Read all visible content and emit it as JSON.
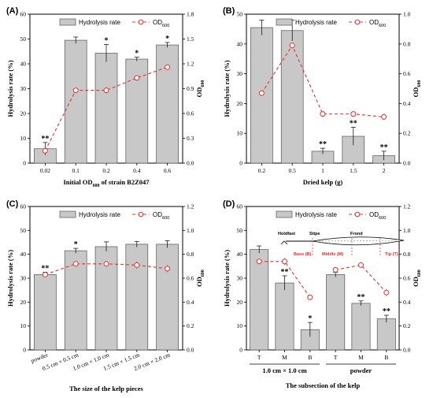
{
  "chart_data": [
    {
      "panel": "(A)",
      "type": "bar",
      "categories": [
        "0.02",
        "0.1",
        "0.2",
        "0.4",
        "0.6"
      ],
      "xlabel_main": "Initial OD",
      "xlabel_sub": "600",
      "xlabel_tail": " of strain B2Z047",
      "ylabel": "Hydrolysis rate (%)",
      "y2label_main": "OD",
      "y2label_sub": "600",
      "ylim": [
        0,
        60
      ],
      "yticks": [
        "0",
        "10",
        "20",
        "30",
        "40",
        "50",
        "60"
      ],
      "y2lim": [
        0,
        1.8
      ],
      "y2ticks": [
        "0.0",
        "0.3",
        "0.6",
        "0.9",
        "1.2",
        "1.5",
        "1.8"
      ],
      "series": [
        {
          "name": "Hydrolysis rate",
          "values": [
            5.8,
            49.5,
            44.3,
            41.9,
            47.6
          ],
          "errors": [
            2.5,
            1.3,
            3.5,
            0.8,
            1.0
          ]
        },
        {
          "name": "OD",
          "name_sub": "600",
          "values": [
            0.15,
            0.88,
            0.88,
            1.03,
            1.16
          ],
          "errors": [
            0.03,
            0.02,
            0.04,
            0.02,
            0.01
          ]
        }
      ],
      "stars": [
        "**",
        "",
        "*",
        "*",
        "*"
      ],
      "legend": "top"
    },
    {
      "panel": "(B)",
      "type": "bar",
      "categories": [
        "0.2",
        "0.5",
        "1",
        "1.5",
        "2"
      ],
      "xlabel_main": "Dried kelp (g)",
      "xlabel_sub": "",
      "xlabel_tail": "",
      "ylabel": "Hydrolysis rate (%)",
      "y2label_main": "OD",
      "y2label_sub": "600",
      "ylim": [
        0,
        50
      ],
      "yticks": [
        "0",
        "10",
        "20",
        "30",
        "40",
        "50"
      ],
      "y2lim": [
        0,
        1.0
      ],
      "y2ticks": [
        "0.0",
        "0.2",
        "0.4",
        "0.6",
        "0.8",
        "1.0"
      ],
      "series": [
        {
          "name": "Hydrolysis rate",
          "values": [
            45.5,
            44.5,
            4.0,
            9.0,
            2.5
          ],
          "errors": [
            2.5,
            3.5,
            1.0,
            3.0,
            1.5
          ]
        },
        {
          "name": "OD",
          "name_sub": "600",
          "values": [
            0.47,
            0.79,
            0.33,
            0.33,
            0.31
          ],
          "errors": [
            0.02,
            0.02,
            0.01,
            0.02,
            0.02
          ]
        }
      ],
      "stars": [
        "",
        "",
        "**",
        "**",
        "**"
      ],
      "legend": "top"
    },
    {
      "panel": "(C)",
      "type": "bar",
      "categories": [
        "powder",
        "0.5 cm × 0.5 cm",
        "1.0 cm × 1.0 cm",
        "1.5 cm × 1.5 cm",
        "2.0 cm × 2.0 cm"
      ],
      "xlabel_main": "The size of the kelp pieces",
      "xlabel_sub": "",
      "xlabel_tail": "",
      "ylabel": "Hydrolysis rate (%)",
      "y2label_main": "OD",
      "y2label_sub": "600",
      "ylim": [
        0,
        60
      ],
      "yticks": [
        "0",
        "10",
        "20",
        "30",
        "40",
        "50",
        "60"
      ],
      "y2lim": [
        0,
        1.2
      ],
      "y2ticks": [
        "0.0",
        "0.2",
        "0.4",
        "0.6",
        "0.8",
        "1.0",
        "1.2"
      ],
      "series": [
        {
          "name": "Hydrolysis rate",
          "values": [
            31.5,
            41.5,
            43.2,
            44.2,
            44.2
          ],
          "errors": [
            1.0,
            1.0,
            2.0,
            1.2,
            1.5
          ]
        },
        {
          "name": "OD",
          "name_sub": "600",
          "values": [
            0.63,
            0.72,
            0.72,
            0.71,
            0.68
          ],
          "errors": [
            0.02,
            0.02,
            0.02,
            0.03,
            0.03
          ]
        }
      ],
      "stars": [
        "**",
        "*",
        "",
        "",
        ""
      ],
      "legend": "top"
    },
    {
      "panel": "(D)",
      "type": "bar",
      "categories": [
        "T",
        "M",
        "B",
        "T",
        "M",
        "B"
      ],
      "groups": [
        "1.0 cm × 1.0 cm",
        "powder"
      ],
      "xlabel_main": "The subsection of the  kelp",
      "xlabel_sub": "",
      "xlabel_tail": "",
      "ylabel": "Hydrolysis rate (%)",
      "y2label_main": "OD",
      "y2label_sub": "600",
      "ylim": [
        0,
        60
      ],
      "yticks": [
        "0",
        "10",
        "20",
        "30",
        "40",
        "50",
        "60"
      ],
      "y2lim": [
        0,
        1.2
      ],
      "y2ticks": [
        "0.0",
        "0.2",
        "0.4",
        "0.6",
        "0.8",
        "1.0",
        "1.2"
      ],
      "series": [
        {
          "name": "Hydrolysis rate",
          "values": [
            42.0,
            28.0,
            8.5,
            31.5,
            19.5,
            13.0
          ],
          "errors": [
            1.5,
            3.0,
            3.0,
            1.0,
            1.0,
            1.5
          ]
        },
        {
          "name": "OD",
          "name_sub": "600",
          "values": [
            0.74,
            0.74,
            0.44,
            0.67,
            0.71,
            0.48
          ],
          "errors": [
            0.02,
            0.03,
            0.01,
            0.02,
            0.01,
            0.03
          ]
        }
      ],
      "stars": [
        "",
        "**",
        "*",
        "",
        "**",
        "**"
      ],
      "legend": "top",
      "diagram": {
        "holdfast": "Holdfast",
        "stipe": "Stipe",
        "frond": "Frond",
        "base": "Base (B)",
        "middle": "Middle (M)",
        "tip": "Tip (T)"
      }
    }
  ]
}
